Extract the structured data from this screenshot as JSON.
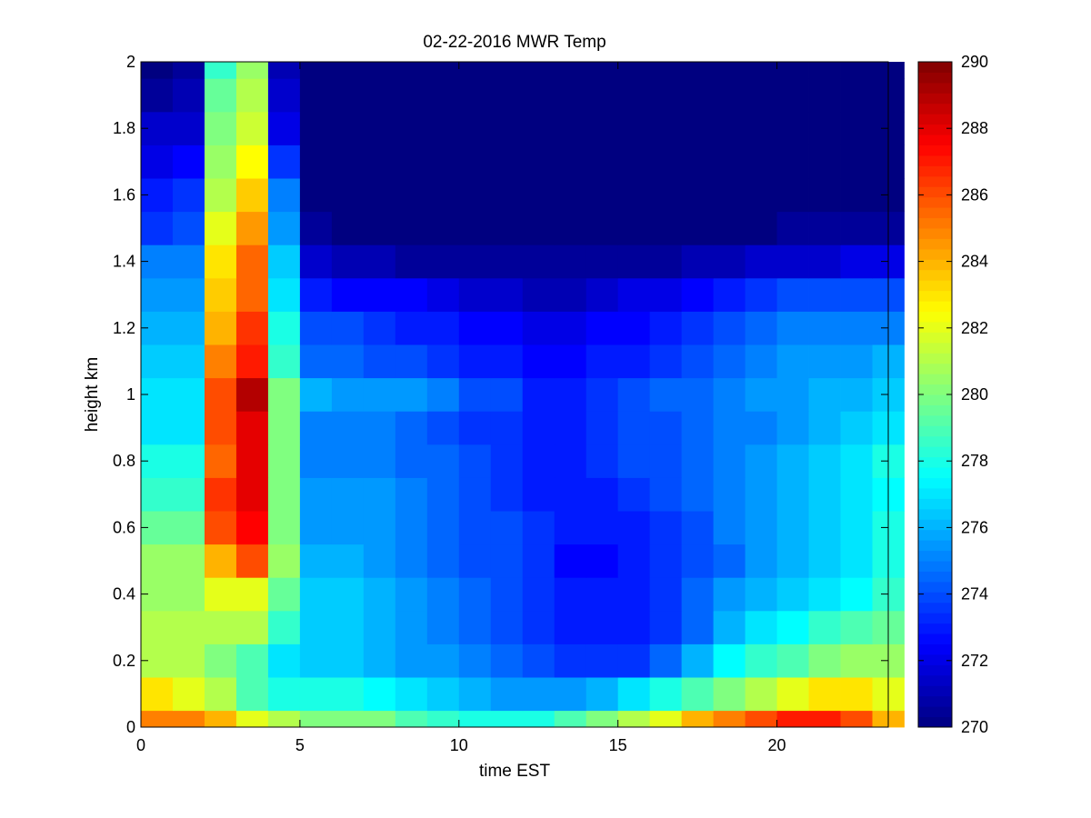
{
  "chart_data": {
    "type": "heatmap",
    "title": "02-22-2016 MWR Temp",
    "xlabel": "time EST",
    "ylabel": "height km",
    "xlim": [
      0,
      23.5
    ],
    "ylim": [
      0,
      2
    ],
    "x_ticks": [
      "0",
      "5",
      "10",
      "15",
      "20"
    ],
    "y_ticks": [
      "0",
      "0.2",
      "0.4",
      "0.6",
      "0.8",
      "1",
      "1.2",
      "1.4",
      "1.6",
      "1.8",
      "2"
    ],
    "colorbar": {
      "min": 270,
      "max": 290,
      "colormap": "jet",
      "ticks": [
        "270",
        "272",
        "274",
        "276",
        "278",
        "280",
        "282",
        "284",
        "286",
        "288",
        "290"
      ]
    },
    "time_bins_start": [
      0,
      1,
      2,
      3,
      4,
      5,
      6,
      7,
      8,
      9,
      10,
      11,
      12,
      13,
      14,
      15,
      16,
      17,
      18,
      19,
      20,
      21,
      22,
      23
    ],
    "height_bin_edges": [
      0,
      0.05,
      0.15,
      0.25,
      0.35,
      0.45,
      0.55,
      0.65,
      0.75,
      0.85,
      0.95,
      1.05,
      1.15,
      1.25,
      1.35,
      1.45,
      1.55,
      1.65,
      1.75,
      1.85,
      1.95,
      2.0
    ],
    "temperature_rows_bottom_to_top": [
      [
        285,
        285,
        284,
        282,
        281,
        280,
        280,
        280,
        279,
        278.5,
        278,
        278,
        278,
        279,
        280,
        281,
        282,
        284,
        285,
        286,
        287,
        287,
        286,
        284
      ],
      [
        283,
        282,
        281,
        279,
        278,
        278,
        278,
        277.5,
        277,
        276.5,
        276,
        275.5,
        275.5,
        275.5,
        276,
        277,
        278,
        279,
        280,
        281,
        282,
        283,
        283,
        282
      ],
      [
        281,
        281,
        280,
        279,
        277,
        276.5,
        276.5,
        276,
        275.5,
        275.5,
        275,
        274.5,
        274,
        273.5,
        273.5,
        273.5,
        274.5,
        276,
        277.5,
        278.5,
        279,
        280,
        280.5,
        280.5
      ],
      [
        281,
        281,
        281,
        281,
        278.5,
        276.5,
        276.5,
        276,
        275.5,
        275,
        274.5,
        274,
        273.5,
        273,
        273,
        273,
        273.5,
        274.5,
        276,
        277,
        277.5,
        278.5,
        279,
        279.5
      ],
      [
        280.5,
        280.5,
        282,
        282,
        279.5,
        276.5,
        276.5,
        276,
        275.5,
        275,
        274.5,
        274,
        273.5,
        273,
        273,
        273,
        273.5,
        274.5,
        275.5,
        276,
        276.5,
        277,
        277.5,
        278.5
      ],
      [
        280.5,
        280.5,
        284,
        286,
        280.5,
        276,
        276,
        275.5,
        275,
        274.5,
        274,
        274,
        273.5,
        272.5,
        272.5,
        273,
        273.5,
        274,
        274.5,
        275.5,
        276,
        276.5,
        277,
        278
      ],
      [
        279.5,
        279.5,
        286,
        287.5,
        280,
        275.5,
        275.5,
        275.5,
        275,
        274.5,
        274,
        274,
        273.5,
        273,
        273,
        273,
        273.5,
        274,
        275,
        275.5,
        276,
        276.5,
        277,
        278
      ],
      [
        278.5,
        278.5,
        286.5,
        288,
        280,
        275.5,
        275.5,
        275.5,
        275,
        274.5,
        274,
        273.5,
        273,
        273,
        273,
        273.5,
        274,
        274.5,
        275,
        275.5,
        276,
        276.5,
        277,
        277.5
      ],
      [
        278,
        278,
        285.5,
        288,
        280,
        275,
        275,
        275,
        274.5,
        274.5,
        274,
        273.5,
        273,
        273,
        273.5,
        274,
        274,
        274.5,
        275,
        275.5,
        276,
        276.5,
        277,
        278
      ],
      [
        277,
        277,
        286,
        288,
        280,
        275,
        275,
        275,
        274.5,
        274,
        273.5,
        273.5,
        273,
        273,
        273.5,
        274,
        274,
        274.5,
        275,
        275,
        275.5,
        276,
        276.5,
        277
      ],
      [
        277,
        277,
        286,
        289,
        280,
        276,
        275.5,
        275.5,
        275.5,
        275,
        274,
        274,
        273,
        273,
        273.5,
        274,
        274.5,
        274.5,
        275,
        275.5,
        275.5,
        276,
        276,
        276.5
      ],
      [
        276.5,
        276.5,
        285,
        287,
        278.5,
        274.5,
        274.5,
        274,
        274,
        273.5,
        273,
        273,
        272.5,
        272.5,
        273,
        273,
        273.5,
        274,
        274.5,
        275,
        275.5,
        275.5,
        275.5,
        276
      ],
      [
        276,
        276,
        284,
        286.5,
        278,
        274,
        274,
        273.5,
        273,
        273,
        272.5,
        272.5,
        272,
        272,
        272.5,
        272.5,
        273,
        273.5,
        274,
        274.5,
        275,
        275,
        275,
        275
      ],
      [
        275.5,
        275.5,
        283.5,
        285.5,
        277,
        273,
        272.5,
        272.5,
        272.5,
        272,
        271.5,
        271.5,
        271,
        271,
        271.5,
        272,
        272,
        272.5,
        273,
        273.5,
        274,
        274,
        274,
        274
      ],
      [
        275,
        275,
        283,
        285.5,
        276.5,
        271.5,
        271,
        271,
        270.5,
        270.5,
        270.5,
        270.5,
        270.5,
        270.5,
        270.5,
        270.5,
        270.5,
        271,
        271,
        271.5,
        271.5,
        271.5,
        272,
        272
      ],
      [
        273.5,
        274,
        282,
        284.5,
        275.5,
        270.5,
        270,
        270,
        270,
        270,
        270,
        270,
        270,
        270,
        270,
        270,
        270,
        270,
        270,
        270,
        270.5,
        270.5,
        270.5,
        270.5
      ],
      [
        273,
        273.5,
        281,
        283.5,
        275,
        270,
        270,
        270,
        270,
        270,
        270,
        270,
        270,
        270,
        270,
        270,
        270,
        270,
        270,
        270,
        270,
        270,
        270,
        270
      ],
      [
        272,
        272.5,
        280.5,
        282.5,
        273.5,
        270,
        270,
        270,
        270,
        270,
        270,
        270,
        270,
        270,
        270,
        270,
        270,
        270,
        270,
        270,
        270,
        270,
        270,
        270
      ],
      [
        271.5,
        271.5,
        280,
        281.5,
        272,
        270,
        270,
        270,
        270,
        270,
        270,
        270,
        270,
        270,
        270,
        270,
        270,
        270,
        270,
        270,
        270,
        270,
        270,
        270
      ],
      [
        270.5,
        271,
        279.5,
        281,
        271.5,
        270,
        270,
        270,
        270,
        270,
        270,
        270,
        270,
        270,
        270,
        270,
        270,
        270,
        270,
        270,
        270,
        270,
        270,
        270
      ],
      [
        270,
        270.5,
        278.5,
        280.5,
        271,
        270,
        270,
        270,
        270,
        270,
        270,
        270,
        270,
        270,
        270,
        270,
        270,
        270,
        270,
        270,
        270,
        270,
        270,
        270
      ]
    ]
  }
}
